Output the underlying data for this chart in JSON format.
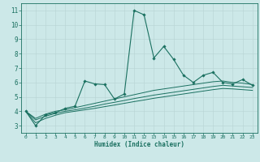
{
  "xlabel": "Humidex (Indice chaleur)",
  "background_color": "#cce8e8",
  "line_color": "#1a7060",
  "grid_color": "#b8d4d4",
  "xlim": [
    -0.5,
    23.5
  ],
  "ylim": [
    2.5,
    11.5
  ],
  "yticks": [
    3,
    4,
    5,
    6,
    7,
    8,
    9,
    10,
    11
  ],
  "xticks": [
    0,
    1,
    2,
    3,
    4,
    5,
    6,
    7,
    8,
    9,
    10,
    11,
    12,
    13,
    14,
    15,
    16,
    17,
    18,
    19,
    20,
    21,
    22,
    23
  ],
  "main_y": [
    4.0,
    3.0,
    3.75,
    3.9,
    4.2,
    4.35,
    6.1,
    5.9,
    5.85,
    4.85,
    5.2,
    11.0,
    10.7,
    7.7,
    8.5,
    7.6,
    6.5,
    6.0,
    6.5,
    6.7,
    6.0,
    5.9,
    6.2,
    5.8
  ],
  "smooth1": [
    4.0,
    3.5,
    3.8,
    4.0,
    4.1,
    4.25,
    4.4,
    4.55,
    4.7,
    4.85,
    5.0,
    5.15,
    5.3,
    5.45,
    5.55,
    5.65,
    5.75,
    5.85,
    5.95,
    6.05,
    6.1,
    6.0,
    5.95,
    5.85
  ],
  "smooth2": [
    4.0,
    3.4,
    3.65,
    3.85,
    4.0,
    4.1,
    4.22,
    4.35,
    4.5,
    4.62,
    4.75,
    4.88,
    5.0,
    5.12,
    5.22,
    5.32,
    5.42,
    5.52,
    5.62,
    5.72,
    5.8,
    5.75,
    5.7,
    5.65
  ],
  "smooth3": [
    4.0,
    3.2,
    3.5,
    3.72,
    3.9,
    4.0,
    4.1,
    4.2,
    4.32,
    4.43,
    4.55,
    4.67,
    4.78,
    4.9,
    5.0,
    5.1,
    5.2,
    5.3,
    5.4,
    5.5,
    5.58,
    5.55,
    5.5,
    5.45
  ]
}
